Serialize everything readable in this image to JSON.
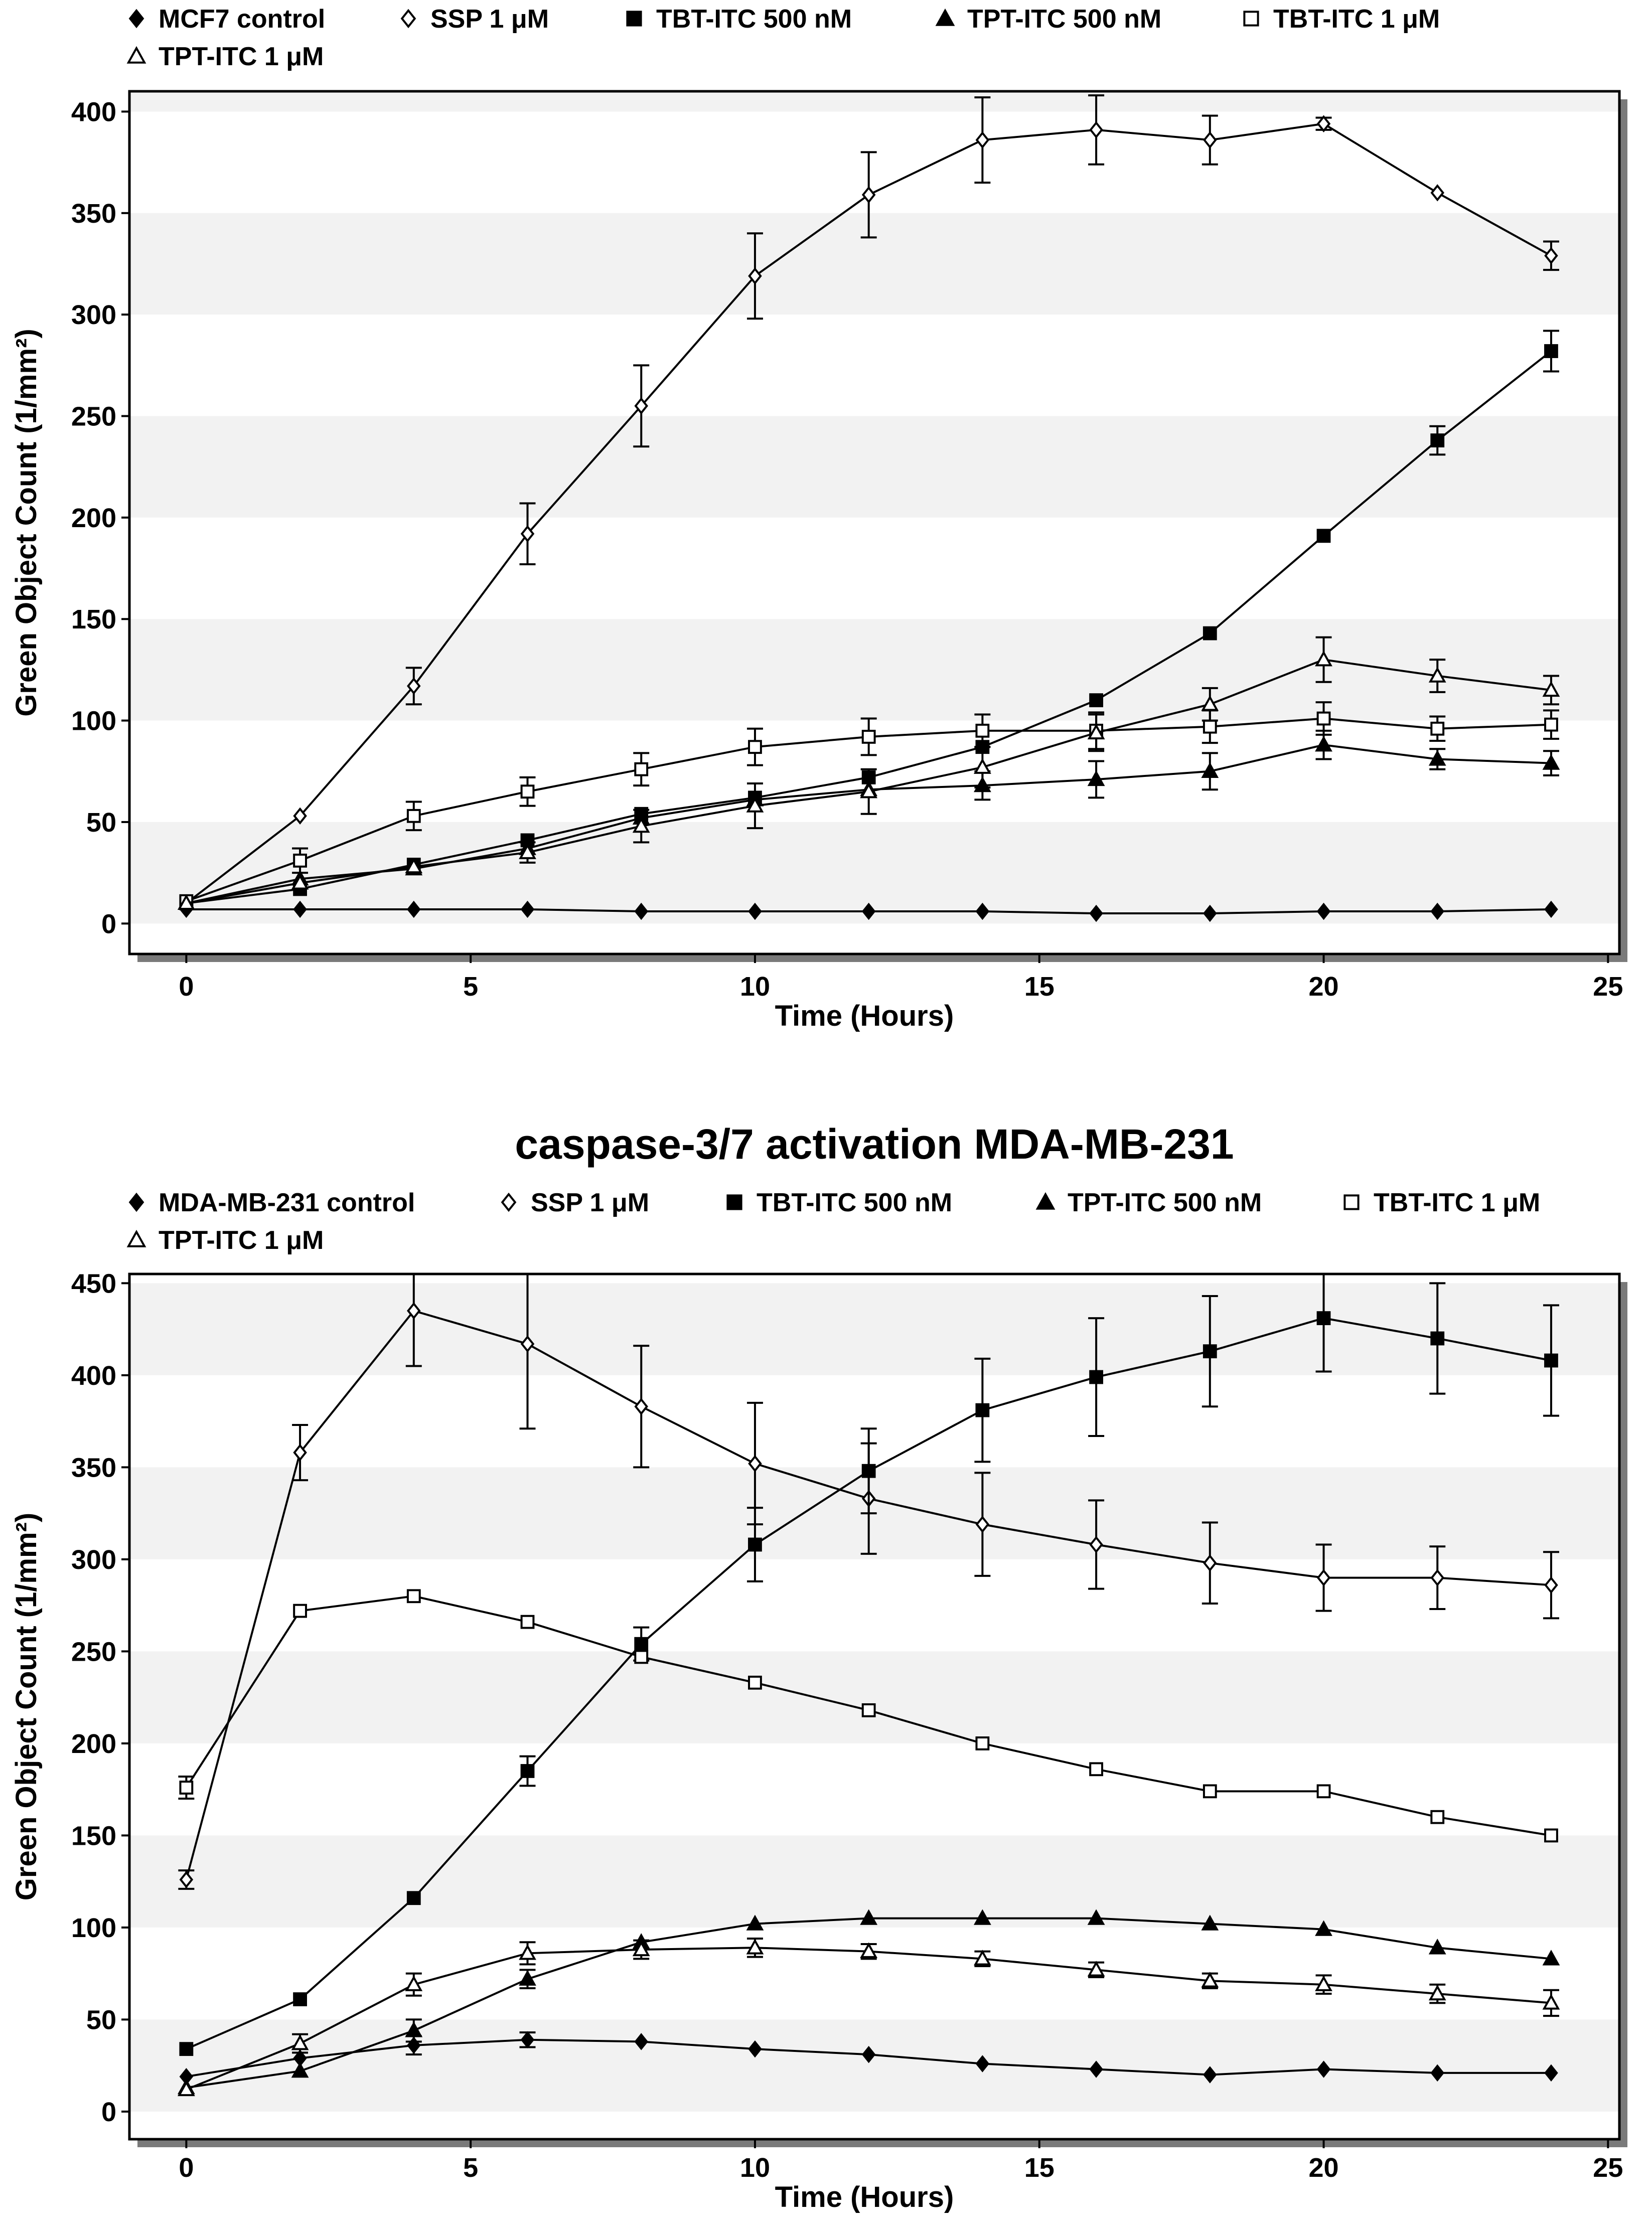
{
  "colors": {
    "ink": "#000000",
    "band": "#f2f2f2",
    "plot_bg": "#ffffff",
    "page_bg": "#ffffff"
  },
  "chart_data": [
    {
      "type": "line",
      "title": "",
      "xlabel": "Time (Hours)",
      "ylabel": "Green Object Count (1/mm²)",
      "xlim": [
        -1,
        25.2
      ],
      "ylim": [
        -15,
        410
      ],
      "xticks": [
        0,
        5,
        10,
        15,
        20,
        25
      ],
      "yticks": [
        0,
        50,
        100,
        150,
        200,
        250,
        300,
        350,
        400
      ],
      "grid": "alternating horizontal bands",
      "legend_position": "top-left, above plot",
      "legend_rows": [
        [
          "MCF7 control",
          "SSP 1 μM",
          "TBT-ITC 500 nM",
          "TPT-ITC 500 nM",
          "TBT-ITC 1 μM"
        ],
        [
          "TPT-ITC 1 μM"
        ]
      ],
      "x": [
        0,
        2,
        4,
        6,
        8,
        10,
        12,
        14,
        16,
        18,
        20,
        22,
        24
      ],
      "series": [
        {
          "name": "MCF7 control",
          "marker": "filled-diamond",
          "values": [
            7,
            7,
            7,
            7,
            6,
            6,
            6,
            6,
            5,
            5,
            6,
            6,
            7
          ],
          "errors": [
            0,
            0,
            0,
            0,
            0,
            0,
            0,
            0,
            0,
            0,
            0,
            0,
            0
          ]
        },
        {
          "name": "SSP 1 μM",
          "marker": "open-diamond",
          "values": [
            10,
            53,
            117,
            192,
            255,
            319,
            359,
            386,
            391,
            386,
            394,
            360,
            329
          ],
          "errors": [
            0,
            0,
            9,
            15,
            20,
            21,
            21,
            21,
            17,
            12,
            3,
            0,
            7
          ]
        },
        {
          "name": "TBT-ITC 500 nM",
          "marker": "filled-square",
          "values": [
            10,
            17,
            29,
            41,
            54,
            62,
            72,
            87,
            110,
            143,
            191,
            238,
            282
          ],
          "errors": [
            0,
            0,
            0,
            0,
            0,
            0,
            0,
            0,
            0,
            0,
            0,
            7,
            10
          ]
        },
        {
          "name": "TPT-ITC 500 nM",
          "marker": "filled-triangle",
          "values": [
            10,
            22,
            27,
            37,
            52,
            61,
            66,
            68,
            71,
            75,
            88,
            81,
            79
          ],
          "errors": [
            0,
            0,
            0,
            0,
            0,
            0,
            0,
            7,
            9,
            9,
            7,
            5,
            6
          ]
        },
        {
          "name": "TBT-ITC 1 μM",
          "marker": "open-square",
          "values": [
            11,
            31,
            53,
            65,
            76,
            87,
            92,
            95,
            95,
            97,
            101,
            96,
            98
          ],
          "errors": [
            0,
            6,
            7,
            7,
            8,
            9,
            9,
            8,
            9,
            8,
            8,
            6,
            7
          ]
        },
        {
          "name": "TPT-ITC 1 μM",
          "marker": "open-triangle",
          "values": [
            10,
            20,
            28,
            35,
            48,
            58,
            65,
            77,
            94,
            108,
            130,
            122,
            115
          ],
          "errors": [
            0,
            0,
            0,
            5,
            8,
            11,
            11,
            10,
            9,
            8,
            11,
            8,
            7
          ]
        }
      ]
    },
    {
      "type": "line",
      "title": "caspase-3/7 activation MDA-MB-231",
      "xlabel": "Time (Hours)",
      "ylabel": "Green Object Count (1/mm²)",
      "xlim": [
        -1,
        25.2
      ],
      "ylim": [
        -15,
        455
      ],
      "xticks": [
        0,
        5,
        10,
        15,
        20,
        25
      ],
      "yticks": [
        0,
        50,
        100,
        150,
        200,
        250,
        300,
        350,
        400,
        450
      ],
      "grid": "alternating horizontal bands",
      "legend_position": "top-left, above plot",
      "legend_rows": [
        [
          "MDA-MB-231 control",
          "SSP 1 μM",
          "TBT-ITC 500 nM",
          "TPT-ITC 500 nM",
          "TBT-ITC 1 μM"
        ],
        [
          "TPT-ITC 1 μM"
        ]
      ],
      "x": [
        0,
        2,
        4,
        6,
        8,
        10,
        12,
        14,
        16,
        18,
        20,
        22,
        24
      ],
      "series": [
        {
          "name": "MDA-MB-231 control",
          "marker": "filled-diamond",
          "values": [
            19,
            29,
            36,
            39,
            38,
            34,
            31,
            26,
            23,
            20,
            23,
            21,
            21
          ],
          "errors": [
            0,
            0,
            5,
            4,
            0,
            0,
            0,
            0,
            0,
            0,
            0,
            0,
            0
          ]
        },
        {
          "name": "SSP 1 μM",
          "marker": "open-diamond",
          "values": [
            126,
            358,
            435,
            417,
            383,
            352,
            333,
            319,
            308,
            298,
            290,
            290,
            286
          ],
          "errors": [
            5,
            15,
            30,
            46,
            33,
            33,
            30,
            28,
            24,
            22,
            18,
            17,
            18
          ]
        },
        {
          "name": "TBT-ITC 500 nM",
          "marker": "filled-square",
          "values": [
            34,
            61,
            116,
            185,
            254,
            308,
            348,
            381,
            399,
            413,
            431,
            420,
            408
          ],
          "errors": [
            0,
            0,
            0,
            8,
            9,
            20,
            23,
            28,
            32,
            30,
            29,
            30,
            30
          ]
        },
        {
          "name": "TPT-ITC 500 nM",
          "marker": "filled-triangle",
          "values": [
            13,
            22,
            44,
            72,
            92,
            102,
            105,
            105,
            105,
            102,
            99,
            89,
            83
          ],
          "errors": [
            0,
            0,
            6,
            5,
            0,
            0,
            0,
            0,
            0,
            0,
            0,
            0,
            0
          ]
        },
        {
          "name": "TBT-ITC 1 μM",
          "marker": "open-square",
          "values": [
            176,
            272,
            280,
            266,
            247,
            233,
            218,
            200,
            186,
            174,
            174,
            160,
            150
          ],
          "errors": [
            6,
            0,
            0,
            0,
            0,
            0,
            0,
            0,
            0,
            0,
            0,
            0,
            0
          ]
        },
        {
          "name": "TPT-ITC 1 μM",
          "marker": "open-triangle",
          "values": [
            12,
            37,
            69,
            86,
            88,
            89,
            87,
            83,
            77,
            71,
            69,
            64,
            59
          ],
          "errors": [
            0,
            5,
            6,
            6,
            5,
            5,
            4,
            4,
            4,
            4,
            5,
            5,
            7
          ]
        }
      ]
    }
  ]
}
